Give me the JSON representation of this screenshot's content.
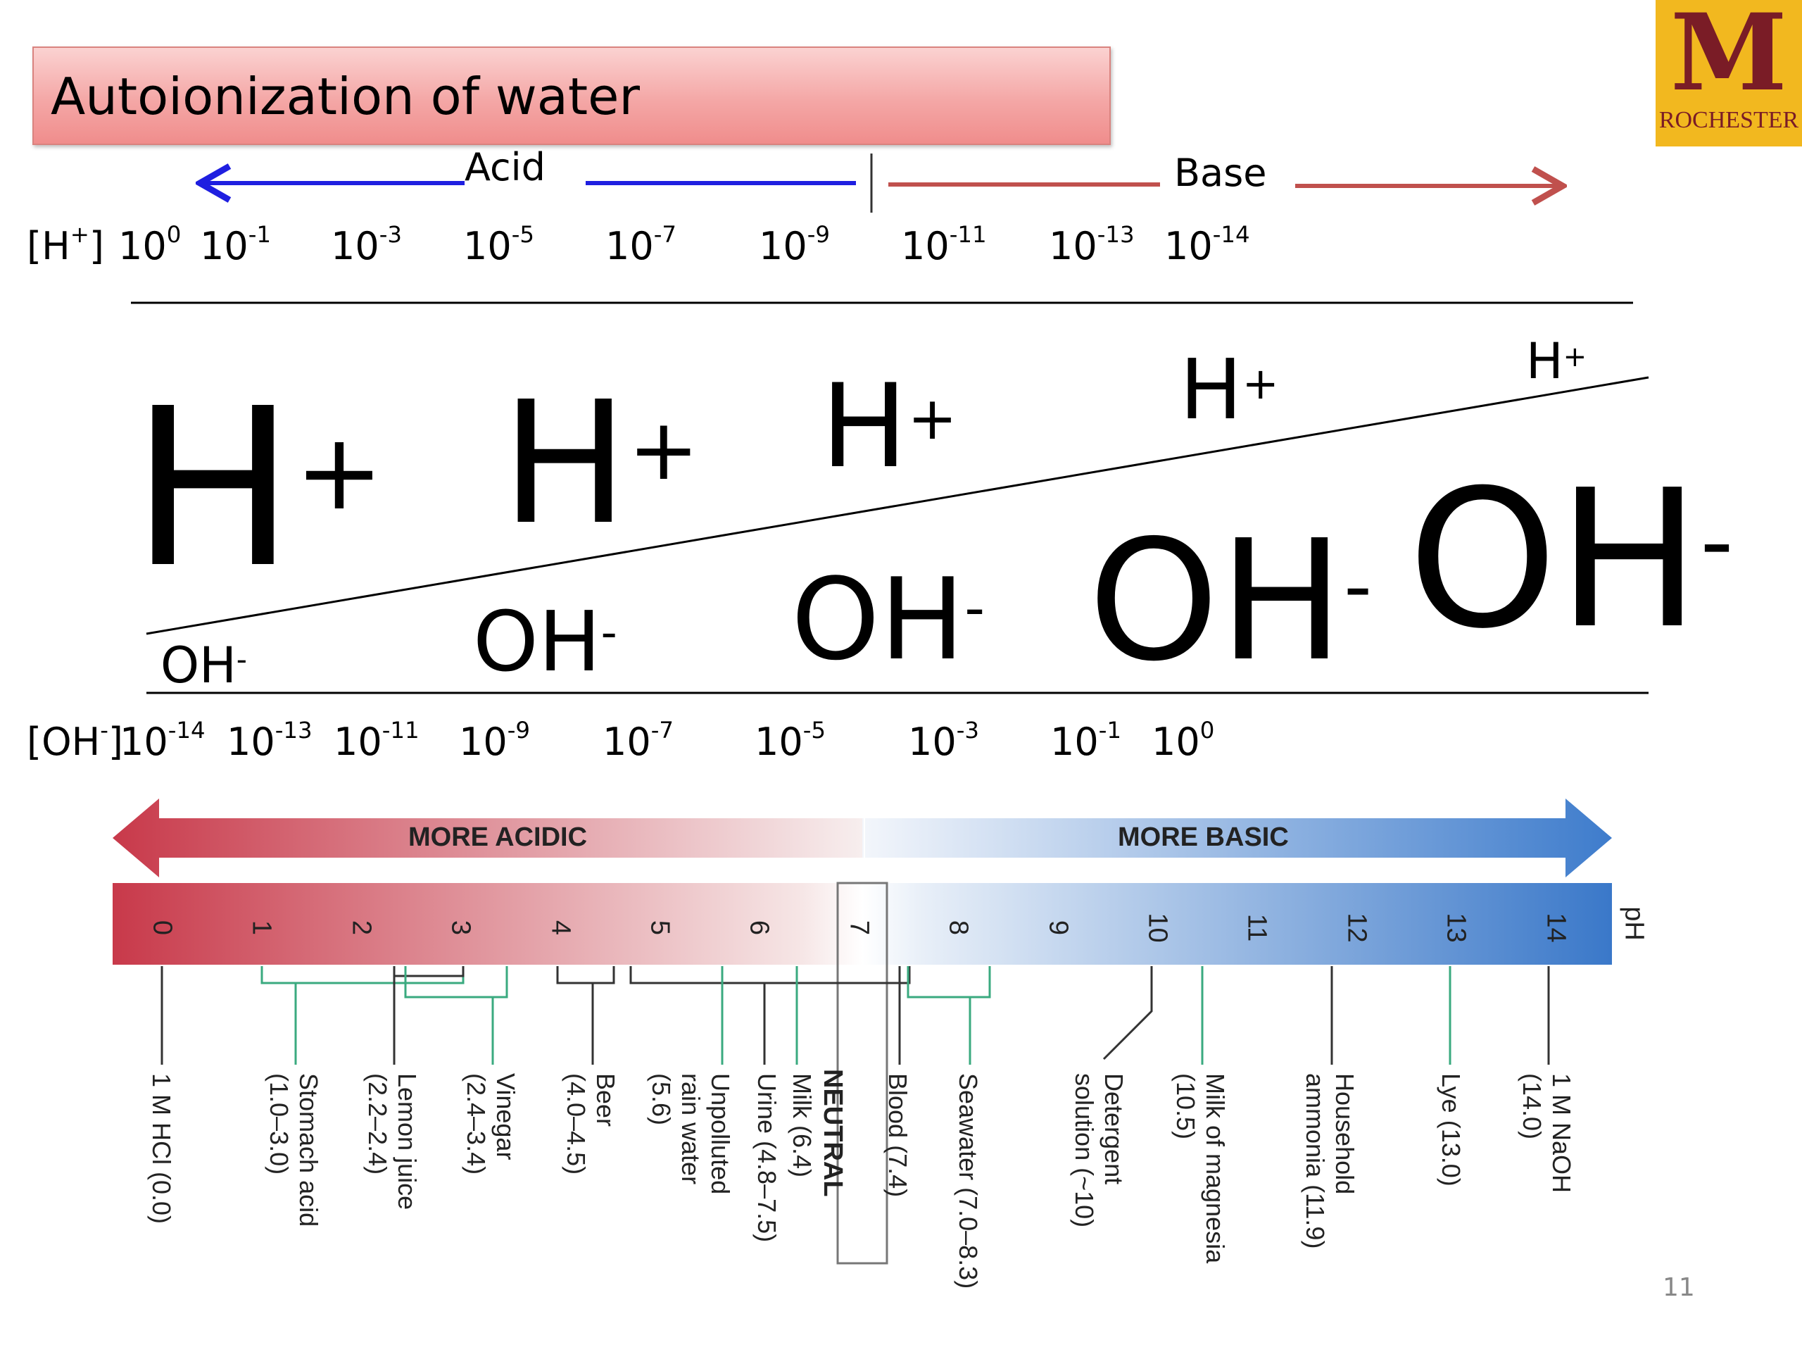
{
  "title": "Autoionization of water",
  "logo": {
    "letter": "M",
    "text": "ROCHESTER",
    "bg": "#f2b81f",
    "fg": "#7a1c26"
  },
  "acid_label": "Acid",
  "base_label": "Base",
  "colors": {
    "acid": "#1f1fe0",
    "base": "#c0504d"
  },
  "h_row": {
    "label_pre": "[H",
    "label_sup": "+",
    "label_post": "]",
    "values": [
      {
        "base": "10",
        "exp": "0"
      },
      {
        "base": "10",
        "exp": "-1"
      },
      {
        "base": "10",
        "exp": "-3"
      },
      {
        "base": "10",
        "exp": "-5"
      },
      {
        "base": "10",
        "exp": "-7"
      },
      {
        "base": "10",
        "exp": "-9"
      },
      {
        "base": "10",
        "exp": "-11"
      },
      {
        "base": "10",
        "exp": "-13"
      },
      {
        "base": "10",
        "exp": "-14"
      }
    ]
  },
  "oh_row": {
    "label_pre": "[OH",
    "label_sup": "-",
    "label_post": "]",
    "values": [
      {
        "base": "10",
        "exp": "-14"
      },
      {
        "base": "10",
        "exp": "-13"
      },
      {
        "base": "10",
        "exp": "-11"
      },
      {
        "base": "10",
        "exp": "-9"
      },
      {
        "base": "10",
        "exp": "-7"
      },
      {
        "base": "10",
        "exp": "-5"
      },
      {
        "base": "10",
        "exp": "-3"
      },
      {
        "base": "10",
        "exp": "-1"
      },
      {
        "base": "10",
        "exp": "0"
      }
    ]
  },
  "ions": {
    "h_text": "H",
    "h_sup": "+",
    "oh_text": "OH",
    "oh_sup": "-"
  },
  "ph_scale": {
    "more_acidic": "MORE ACIDIC",
    "more_basic": "MORE BASIC",
    "unit": "pH",
    "numbers": [
      "0",
      "1",
      "2",
      "3",
      "4",
      "5",
      "6",
      "7",
      "8",
      "9",
      "10",
      "11",
      "12",
      "13",
      "14"
    ],
    "neutral": "NEUTRAL",
    "examples": [
      {
        "lines": [
          "1 M HCl (0.0)"
        ]
      },
      {
        "lines": [
          "Stomach acid",
          "(1.0–3.0)"
        ]
      },
      {
        "lines": [
          "Lemon juice",
          "(2.2–2.4)"
        ]
      },
      {
        "lines": [
          "Vinegar",
          "(2.4–3.4)"
        ]
      },
      {
        "lines": [
          "Beer",
          "(4.0–4.5)"
        ]
      },
      {
        "lines": [
          "Unpolluted",
          "rain water",
          "(5.6)"
        ]
      },
      {
        "lines": [
          "Urine (4.8–7.5)"
        ]
      },
      {
        "lines": [
          "Milk (6.4)"
        ]
      },
      {
        "lines": [
          "Blood (7.4)"
        ]
      },
      {
        "lines": [
          "Seawater (7.0–8.3)"
        ]
      },
      {
        "lines": [
          "Detergent",
          "solution (~10)"
        ]
      },
      {
        "lines": [
          "Milk of magnesia",
          "(10.5)"
        ]
      },
      {
        "lines": [
          "Household",
          "ammonia (11.9)"
        ]
      },
      {
        "lines": [
          "Lye (13.0)"
        ]
      },
      {
        "lines": [
          "1 M NaOH",
          "(14.0)"
        ]
      }
    ]
  },
  "page_number": "11"
}
